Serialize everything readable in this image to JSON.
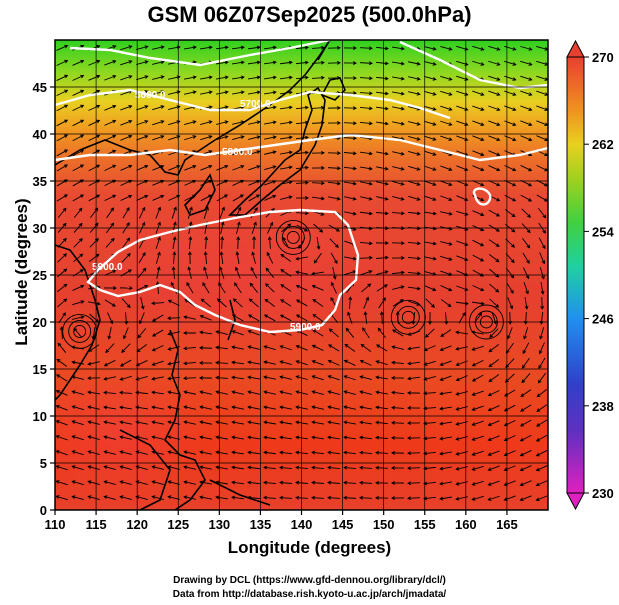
{
  "title": "GSM 06Z07Sep2025 (500.0hPa)",
  "xlabel": "Longitude (degrees)",
  "ylabel": "Latitude  (degrees)",
  "credits": {
    "line1": "Drawing by DCL (https://www.gfd-dennou.org/library/dcl/)",
    "line2": "Data from http://database.rish.kyoto-u.ac.jp/arch/jmadata/"
  },
  "chart_data": {
    "type": "heatmap",
    "title": "GSM 06Z07Sep2025 (500.0hPa)",
    "xlabel": "Longitude (degrees)",
    "ylabel": "Latitude  (degrees)",
    "xlim": [
      110,
      170
    ],
    "ylim": [
      0,
      50
    ],
    "x_ticks": [
      110,
      115,
      120,
      125,
      130,
      135,
      140,
      145,
      150,
      155,
      160,
      165
    ],
    "y_ticks": [
      0,
      5,
      10,
      15,
      20,
      25,
      30,
      35,
      40,
      45
    ],
    "colorbar": {
      "min": 230,
      "max": 270,
      "ticks": [
        230,
        238,
        246,
        254,
        262,
        270
      ],
      "colors": [
        "#e020c0",
        "#4030c0",
        "#2090f0",
        "#20d0a0",
        "#50d020",
        "#e0d020",
        "#f09020",
        "#e84030"
      ]
    },
    "contours": [
      {
        "label": "5600.0"
      },
      {
        "label": "5800.0"
      },
      {
        "label": "5900.0"
      }
    ],
    "contour_label_texts": [
      "5600.0",
      "5700.0",
      "5800.0",
      "5900.0",
      "5900.0"
    ],
    "vortex_centers": [
      {
        "lon": 139,
        "lat": 29
      },
      {
        "lon": 113,
        "lat": 19
      },
      {
        "lon": 153,
        "lat": 20.5
      },
      {
        "lon": 162.5,
        "lat": 20
      }
    ]
  }
}
